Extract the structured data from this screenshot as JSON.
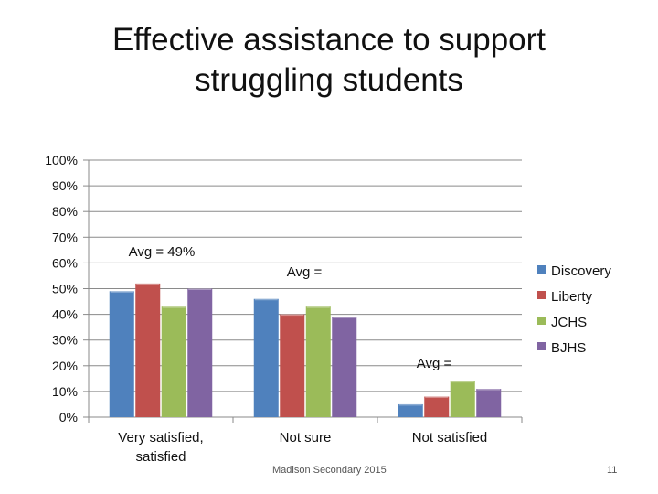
{
  "title_line1": "Effective assistance to support",
  "title_line2": "struggling students",
  "footer_text": "Madison Secondary 2015",
  "slide_number": "11",
  "chart_data": {
    "type": "bar",
    "categories": [
      "Very satisfied, satisfied",
      "Not sure",
      "Not satisfied"
    ],
    "category_label_lines": [
      [
        "Very satisfied,",
        "satisfied"
      ],
      [
        "Not sure"
      ],
      [
        "Not satisfied"
      ]
    ],
    "series": [
      {
        "name": "Discovery",
        "values": [
          49,
          46,
          5
        ],
        "color": "#4f81bd"
      },
      {
        "name": "Liberty",
        "values": [
          52,
          40,
          8
        ],
        "color": "#c0504d"
      },
      {
        "name": "JCHS",
        "values": [
          43,
          43,
          14
        ],
        "color": "#9bbb59"
      },
      {
        "name": "BJHS",
        "values": [
          50,
          39,
          11
        ],
        "color": "#8064a2"
      }
    ],
    "y_ticks": [
      "0%",
      "10%",
      "20%",
      "30%",
      "40%",
      "50%",
      "60%",
      "70%",
      "80%",
      "90%",
      "100%"
    ],
    "ylim": [
      0,
      100
    ],
    "grid": true,
    "legend_position": "right",
    "annotations": [
      "Avg = 49%",
      "Avg =",
      "Avg ="
    ]
  }
}
